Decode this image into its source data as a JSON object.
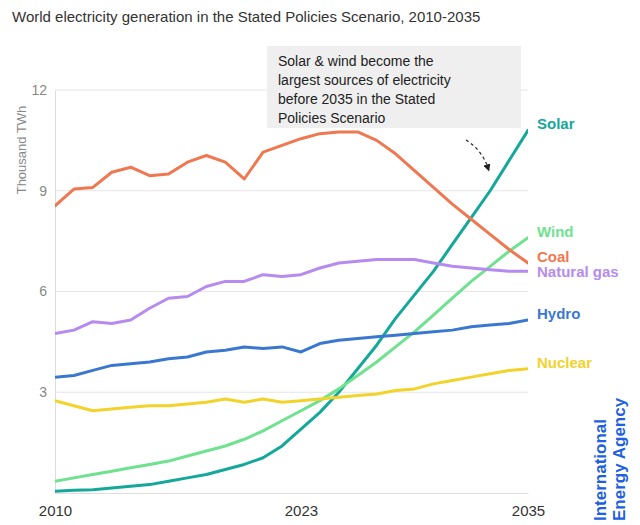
{
  "chart_data": {
    "type": "line",
    "title": "World electricity generation in the Stated Policies Scenario, 2010-2035",
    "y_label": "Thousand TWh",
    "annotation": [
      "Solar & wind become the",
      "largest sources of electricity",
      "before 2035 in the Stated",
      "Policies Scenario"
    ],
    "source": [
      "International",
      "Energy Agency"
    ],
    "x": [
      2010,
      2011,
      2012,
      2013,
      2014,
      2015,
      2016,
      2017,
      2018,
      2019,
      2020,
      2021,
      2022,
      2023,
      2024,
      2025,
      2026,
      2027,
      2028,
      2029,
      2030,
      2031,
      2032,
      2033,
      2034,
      2035
    ],
    "xlim": [
      2010,
      2035
    ],
    "xticks": [
      2010,
      2023,
      2035
    ],
    "ylim": [
      0,
      12
    ],
    "yticks": [
      3,
      6,
      9,
      12
    ],
    "grid": true,
    "series": [
      {
        "name": "Solar",
        "color": "#14a89a",
        "values": [
          0.05,
          0.08,
          0.1,
          0.15,
          0.2,
          0.25,
          0.35,
          0.45,
          0.55,
          0.7,
          0.85,
          1.05,
          1.4,
          1.9,
          2.4,
          3.0,
          3.7,
          4.4,
          5.2,
          5.9,
          6.6,
          7.4,
          8.2,
          9.0,
          9.9,
          10.8
        ]
      },
      {
        "name": "Wind",
        "color": "#6ee28e",
        "values": [
          0.35,
          0.45,
          0.55,
          0.65,
          0.75,
          0.85,
          0.95,
          1.1,
          1.25,
          1.4,
          1.6,
          1.85,
          2.15,
          2.45,
          2.75,
          3.1,
          3.5,
          3.9,
          4.35,
          4.8,
          5.3,
          5.8,
          6.3,
          6.75,
          7.2,
          7.6
        ]
      },
      {
        "name": "Coal",
        "color": "#f07850",
        "values": [
          8.55,
          9.05,
          9.1,
          9.55,
          9.7,
          9.45,
          9.5,
          9.85,
          10.05,
          9.85,
          9.35,
          10.15,
          10.35,
          10.55,
          10.7,
          10.75,
          10.75,
          10.5,
          10.1,
          9.6,
          9.1,
          8.6,
          8.15,
          7.7,
          7.25,
          6.85
        ]
      },
      {
        "name": "Natural gas",
        "color": "#b68bf0",
        "values": [
          4.75,
          4.85,
          5.1,
          5.05,
          5.15,
          5.5,
          5.8,
          5.85,
          6.15,
          6.3,
          6.3,
          6.5,
          6.45,
          6.5,
          6.7,
          6.85,
          6.9,
          6.95,
          6.95,
          6.95,
          6.85,
          6.75,
          6.7,
          6.65,
          6.6,
          6.6
        ]
      },
      {
        "name": "Hydro",
        "color": "#3a78d0",
        "values": [
          3.45,
          3.5,
          3.65,
          3.8,
          3.85,
          3.9,
          4.0,
          4.05,
          4.2,
          4.25,
          4.35,
          4.3,
          4.35,
          4.2,
          4.45,
          4.55,
          4.6,
          4.65,
          4.7,
          4.75,
          4.8,
          4.85,
          4.95,
          5.0,
          5.05,
          5.15
        ]
      },
      {
        "name": "Nuclear",
        "color": "#f2d32a",
        "values": [
          2.75,
          2.6,
          2.45,
          2.5,
          2.55,
          2.6,
          2.6,
          2.65,
          2.7,
          2.8,
          2.7,
          2.8,
          2.7,
          2.75,
          2.8,
          2.85,
          2.9,
          2.95,
          3.05,
          3.1,
          3.25,
          3.35,
          3.45,
          3.55,
          3.65,
          3.7
        ]
      }
    ]
  }
}
